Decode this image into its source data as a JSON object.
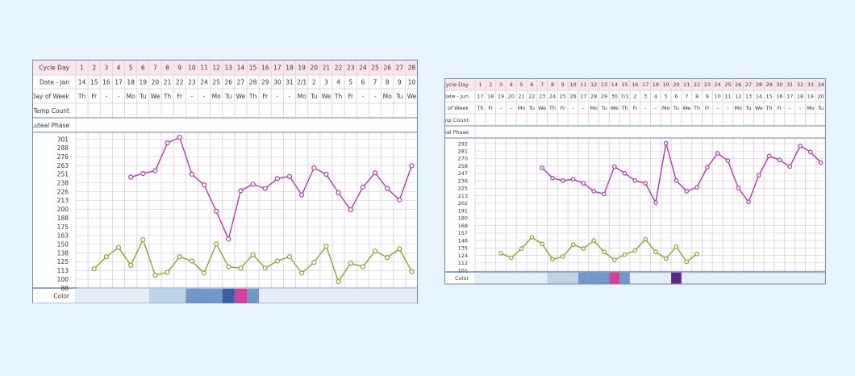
{
  "colors": {
    "pink": "#b03aa8",
    "green": "#7cab2a",
    "header_pink": "#fbe6ee",
    "grid": "#e4d2e4",
    "border": "#6a8ab0",
    "color_light": "#bcd4e6",
    "color_mid": "#7098c8",
    "color_dark": "#3a5ea6",
    "color_magenta": "#d4409a",
    "color_very_light": "#e4eef6",
    "color_purple": "#5a2a8a"
  },
  "chart_data": [
    {
      "type": "line",
      "row_labels": {
        "cycle_day": "Cycle Day",
        "date": "Date - Jan",
        "dow": "Day of Week",
        "temp_count": "Temp Count",
        "luteal": "Luteal Phase",
        "color": "Color"
      },
      "cycle_days": [
        "1",
        "2",
        "3",
        "4",
        "5",
        "6",
        "7",
        "8",
        "9",
        "10",
        "11",
        "12",
        "13",
        "14",
        "15",
        "16",
        "17",
        "18",
        "19",
        "20",
        "21",
        "22",
        "23",
        "24",
        "25",
        "26",
        "27",
        "28"
      ],
      "dates": [
        "14",
        "15",
        "16",
        "17",
        "18",
        "19",
        "20",
        "21",
        "22",
        "23",
        "24",
        "25",
        "26",
        "27",
        "28",
        "29",
        "30",
        "31",
        "2/1",
        "2",
        "3",
        "4",
        "5",
        "6",
        "7",
        "8",
        "9",
        "10"
      ],
      "dow": [
        "Th",
        "Fr",
        "-",
        "-",
        "Mo",
        "Tu",
        "We",
        "Th",
        "Fr",
        "-",
        "-",
        "Mo",
        "Tu",
        "We",
        "Th",
        "Fr",
        "-",
        "-",
        "Mo",
        "Tu",
        "We",
        "Th",
        "Fr",
        "-",
        "-",
        "Mo",
        "Tu",
        "We"
      ],
      "ytick_labels": [
        "301",
        "288",
        "276",
        "263",
        "251",
        "238",
        "226",
        "213",
        "200",
        "188",
        "175",
        "163",
        "150",
        "138",
        "125",
        "113",
        "100",
        "88"
      ],
      "ylim": [
        88,
        307
      ],
      "series": [
        {
          "color": "pink",
          "values": [
            null,
            null,
            null,
            null,
            244,
            249,
            253,
            292,
            300,
            248,
            233,
            196,
            157,
            225,
            234,
            228,
            242,
            245,
            219,
            257,
            248,
            222,
            198,
            230,
            250,
            228,
            212,
            260
          ]
        },
        {
          "color": "green",
          "values": [
            null,
            115,
            132,
            145,
            120,
            156,
            106,
            110,
            132,
            126,
            109,
            150,
            118,
            116,
            135,
            116,
            126,
            132,
            109,
            124,
            147,
            97,
            123,
            118,
            140,
            131,
            143,
            111
          ]
        }
      ],
      "color_row": [
        "",
        "",
        "",
        "",
        "",
        "",
        "light",
        "light",
        "light",
        "mid",
        "mid",
        "mid",
        "dark",
        "magenta",
        "mid",
        "",
        "",
        "",
        "",
        "",
        "",
        "",
        "",
        "",
        "",
        "",
        "",
        ""
      ]
    },
    {
      "type": "line",
      "row_labels": {
        "cycle_day": "Cycle Day",
        "date": "Date - Jun",
        "dow": "Day of Week",
        "temp_count": "Temp Count",
        "luteal": "Luteal Phase",
        "color": "Color"
      },
      "cycle_days": [
        "1",
        "2",
        "3",
        "4",
        "5",
        "6",
        "7",
        "8",
        "9",
        "10",
        "11",
        "12",
        "13",
        "14",
        "15",
        "16",
        "17",
        "18",
        "19",
        "20",
        "21",
        "22",
        "23",
        "24",
        "25",
        "26",
        "27",
        "28",
        "29",
        "30",
        "31",
        "32",
        "33",
        "34"
      ],
      "dates": [
        "17",
        "18",
        "19",
        "20",
        "21",
        "22",
        "23",
        "24",
        "25",
        "26",
        "27",
        "28",
        "29",
        "30",
        "7/1",
        "2",
        "3",
        "4",
        "5",
        "6",
        "7",
        "8",
        "9",
        "10",
        "11",
        "12",
        "13",
        "14",
        "15",
        "16",
        "17",
        "18",
        "19",
        "20"
      ],
      "dow": [
        "Th",
        "Fr",
        "-",
        "-",
        "Mo",
        "Tu",
        "We",
        "Th",
        "Fr",
        "-",
        "-",
        "Mo",
        "Tu",
        "We",
        "Th",
        "Fr",
        "-",
        "-",
        "Mo",
        "Tu",
        "We",
        "Th",
        "Fr",
        "-",
        "-",
        "Mo",
        "Tu",
        "We",
        "Th",
        "Fr",
        "-",
        "-",
        "Mo",
        "Tu"
      ],
      "ytick_labels": [
        "292",
        "281",
        "270",
        "258",
        "247",
        "236",
        "225",
        "213",
        "202",
        "191",
        "180",
        "168",
        "157",
        "146",
        "135",
        "124",
        "112",
        "101"
      ],
      "ylim": [
        96,
        297
      ],
      "series": [
        {
          "color": "pink",
          "values": [
            null,
            null,
            null,
            null,
            null,
            null,
            252,
            237,
            233,
            235,
            229,
            217,
            213,
            254,
            244,
            233,
            229,
            200,
            289,
            233,
            217,
            223,
            253,
            274,
            263,
            222,
            201,
            241,
            270,
            264,
            254,
            285,
            276,
            260
          ]
        },
        {
          "color": "green",
          "values": [
            null,
            null,
            124,
            117,
            131,
            148,
            138,
            115,
            119,
            137,
            131,
            143,
            126,
            114,
            122,
            128,
            145,
            126,
            116,
            134,
            111,
            123,
            null,
            null,
            null,
            null,
            null,
            null,
            null,
            null,
            null,
            null,
            null,
            null
          ]
        }
      ],
      "color_row": [
        "",
        "",
        "",
        "",
        "",
        "",
        "",
        "light",
        "light",
        "light",
        "mid",
        "mid",
        "mid",
        "magenta",
        "mid",
        "very_light",
        "very_light",
        "",
        "",
        "purple",
        "",
        "",
        "",
        "",
        "",
        "",
        "",
        "",
        "",
        "",
        "",
        "",
        "",
        ""
      ]
    }
  ]
}
